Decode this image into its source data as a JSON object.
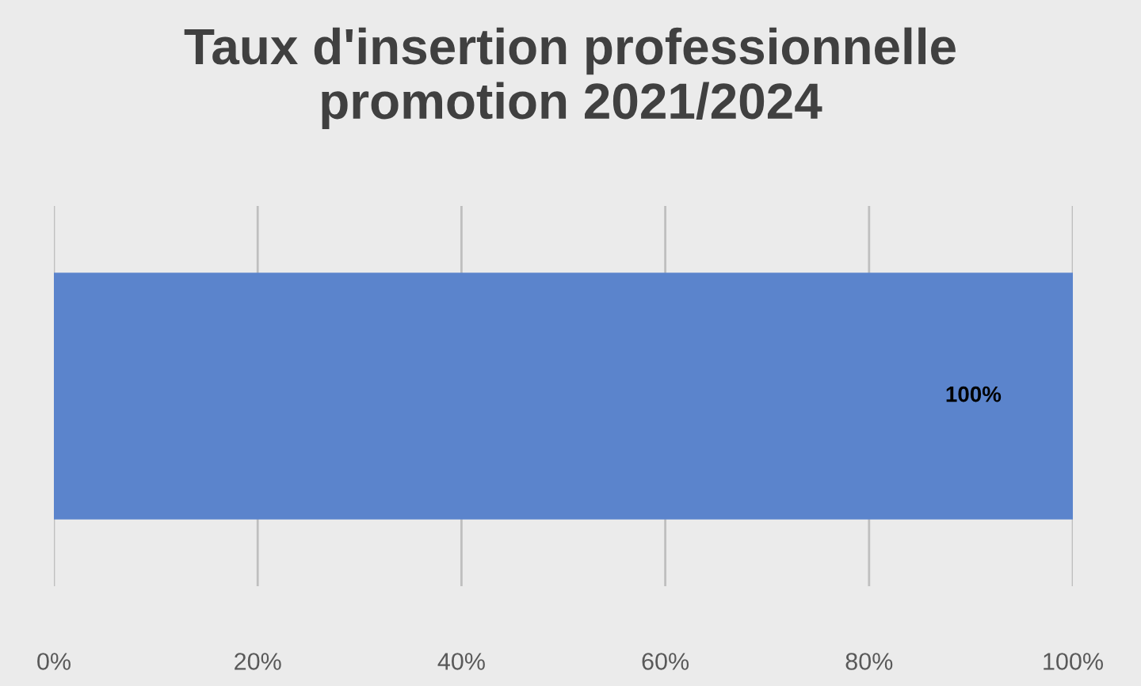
{
  "chart_data": {
    "type": "bar",
    "orientation": "horizontal",
    "title": "Taux d'insertion professionnelle\npromotion 2021/2024",
    "categories": [
      null
    ],
    "values": [
      100
    ],
    "color": "#5b84cc",
    "value_labels": [
      "100%"
    ],
    "xlim": [
      0,
      100
    ],
    "xticks": [
      {
        "value": 0,
        "label": "0%"
      },
      {
        "value": 20,
        "label": "20%"
      },
      {
        "value": 40,
        "label": "40%"
      },
      {
        "value": 60,
        "label": "60%"
      },
      {
        "value": 80,
        "label": "80%"
      },
      {
        "value": 100,
        "label": "100%"
      }
    ],
    "grid": "x"
  }
}
